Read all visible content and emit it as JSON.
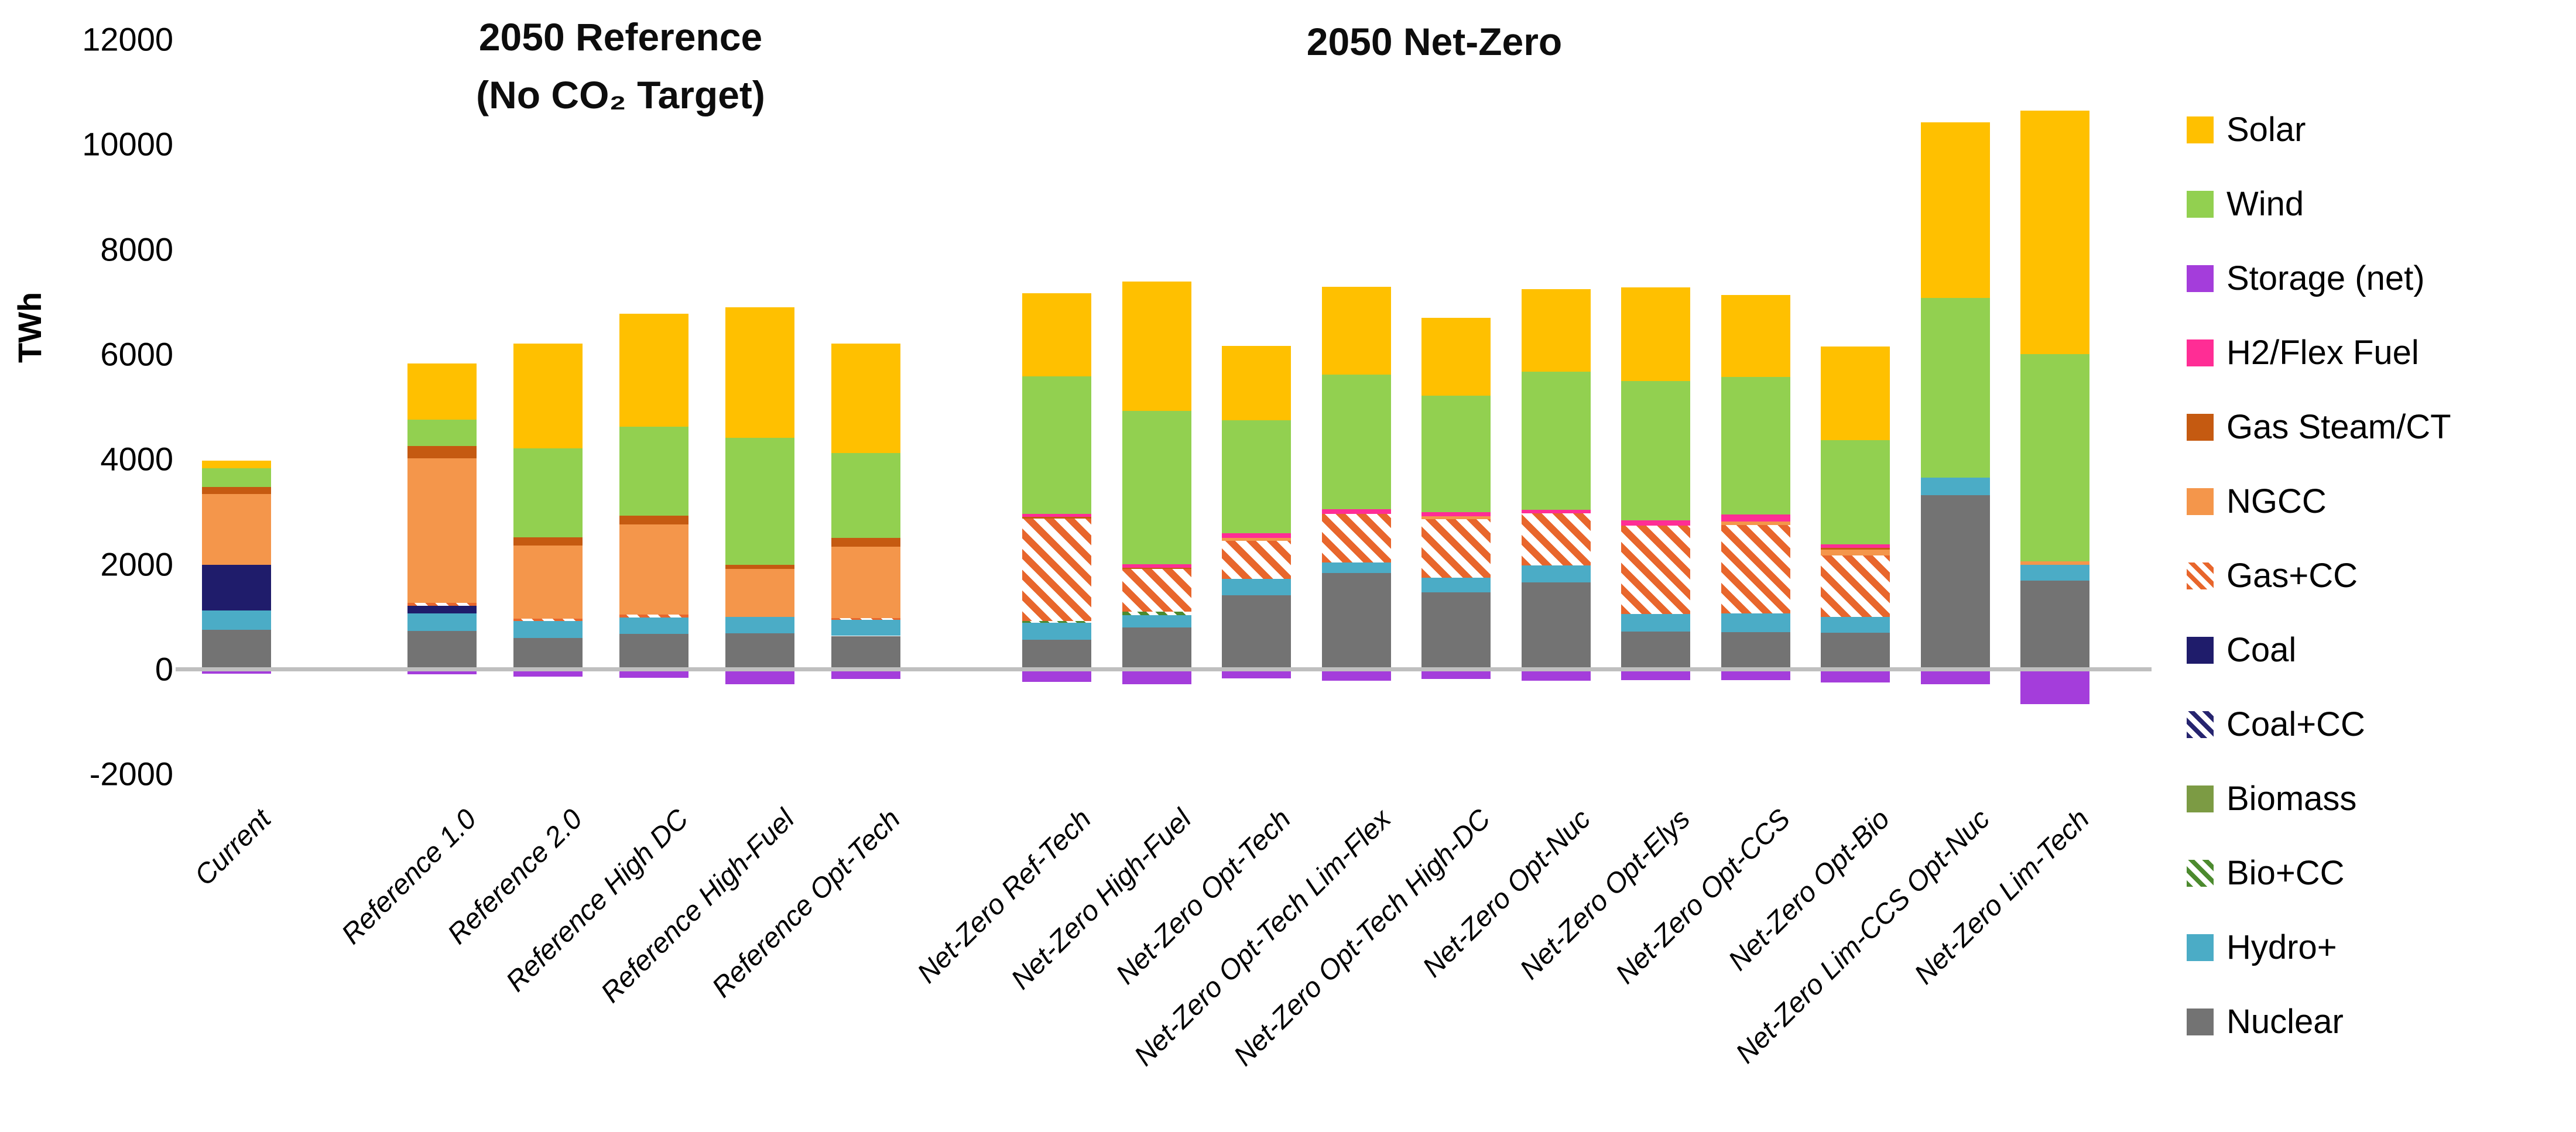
{
  "chart_data": {
    "type": "bar",
    "stacked": true,
    "title_reference": "2050 Reference\n(No CO₂ Target)",
    "title_netzero": "2050 Net-Zero",
    "ylabel": "TWh",
    "yticks": [
      12000,
      10000,
      8000,
      6000,
      4000,
      2000,
      0,
      -2000
    ],
    "ylim": [
      -2000,
      12000
    ],
    "grid": false,
    "legend_position": "right",
    "categories": [
      "Current",
      "Reference 1.0",
      "Reference 2.0",
      "Reference High DC",
      "Reference High-Fuel",
      "Reference Opt-Tech",
      "Net-Zero Ref-Tech",
      "Net-Zero High-Fuel",
      "Net-Zero Opt-Tech",
      "Net-Zero Opt-Tech Lim-Flex",
      "Net-Zero Opt-Tech High-DC",
      "Net-Zero Opt-Nuc",
      "Net-Zero Opt-Elys",
      "Net-Zero Opt-CCS",
      "Net-Zero Opt-Bio",
      "Net-Zero Lim-CCS Opt-Nuc",
      "Net-Zero Lim-Tech"
    ],
    "series": [
      {
        "name": "Nuclear",
        "color": "#737373",
        "pattern": "solid",
        "values": [
          750,
          730,
          590,
          670,
          680,
          630,
          560,
          790,
          1400,
          1830,
          1460,
          1650,
          710,
          700,
          690,
          3310,
          1680
        ]
      },
      {
        "name": "Hydro+",
        "color": "#4bacc6",
        "pattern": "solid",
        "values": [
          360,
          330,
          320,
          310,
          310,
          310,
          320,
          240,
          320,
          200,
          280,
          320,
          340,
          360,
          300,
          340,
          300
        ]
      },
      {
        "name": "Bio+CC",
        "color": "#4c8a2e",
        "pattern": "hatch-biocc",
        "values": [
          0,
          0,
          0,
          0,
          0,
          0,
          40,
          60,
          0,
          0,
          0,
          0,
          0,
          0,
          0,
          0,
          0
        ]
      },
      {
        "name": "Biomass",
        "color": "#7c9b44",
        "pattern": "solid",
        "values": [
          0,
          0,
          0,
          0,
          0,
          0,
          0,
          0,
          0,
          0,
          0,
          0,
          0,
          0,
          0,
          0,
          0
        ]
      },
      {
        "name": "Coal+CC",
        "color": "#26246f",
        "pattern": "hatch-coalcc",
        "values": [
          0,
          0,
          0,
          0,
          0,
          0,
          0,
          0,
          0,
          0,
          0,
          0,
          0,
          0,
          0,
          0,
          0
        ]
      },
      {
        "name": "Coal",
        "color": "#1f1c6b",
        "pattern": "solid",
        "values": [
          870,
          140,
          0,
          0,
          0,
          0,
          0,
          0,
          0,
          0,
          0,
          0,
          0,
          0,
          0,
          0,
          0
        ]
      },
      {
        "name": "Gas+CC",
        "color": "#e8662c",
        "pattern": "hatch-gas",
        "values": [
          0,
          60,
          50,
          60,
          0,
          30,
          1950,
          820,
          720,
          930,
          1120,
          1000,
          1680,
          1680,
          1170,
          0,
          0
        ]
      },
      {
        "name": "NGCC",
        "color": "#f4964b",
        "pattern": "solid",
        "values": [
          1360,
          2760,
          1390,
          1710,
          920,
          1360,
          0,
          0,
          60,
          0,
          50,
          0,
          0,
          70,
          120,
          0,
          70
        ]
      },
      {
        "name": "Gas Steam/CT",
        "color": "#c55a11",
        "pattern": "solid",
        "values": [
          130,
          230,
          160,
          170,
          80,
          170,
          30,
          20,
          0,
          0,
          0,
          0,
          0,
          0,
          30,
          0,
          0
        ]
      },
      {
        "name": "H2/Flex Fuel",
        "color": "#ff2d95",
        "pattern": "solid",
        "values": [
          0,
          0,
          0,
          0,
          0,
          0,
          50,
          70,
          90,
          90,
          80,
          60,
          100,
          130,
          70,
          0,
          0
        ]
      },
      {
        "name": "Wind",
        "color": "#92d050",
        "pattern": "solid",
        "values": [
          350,
          500,
          1690,
          1700,
          2420,
          1620,
          2630,
          2920,
          2150,
          2560,
          2220,
          2640,
          2660,
          2630,
          1980,
          3420,
          3950
        ]
      },
      {
        "name": "Solar",
        "color": "#ffc000",
        "pattern": "solid",
        "values": [
          150,
          1070,
          2000,
          2150,
          2480,
          2080,
          1580,
          2460,
          1420,
          1670,
          1480,
          1570,
          1780,
          1560,
          1790,
          3350,
          4640
        ]
      },
      {
        "name": "Storage (net)",
        "color": "#a43ddb",
        "pattern": "solid",
        "values": [
          -50,
          -60,
          -100,
          -120,
          -250,
          -150,
          -200,
          -250,
          -130,
          -180,
          -140,
          -180,
          -170,
          -170,
          -215,
          -250,
          -620
        ]
      }
    ],
    "legend": [
      {
        "label": "Solar",
        "color": "#ffc000",
        "pattern": "solid"
      },
      {
        "label": "Wind",
        "color": "#92d050",
        "pattern": "solid"
      },
      {
        "label": "Storage (net)",
        "color": "#a43ddb",
        "pattern": "solid"
      },
      {
        "label": "H2/Flex Fuel",
        "color": "#ff2d95",
        "pattern": "solid"
      },
      {
        "label": "Gas Steam/CT",
        "color": "#c55a11",
        "pattern": "solid"
      },
      {
        "label": "NGCC",
        "color": "#f4964b",
        "pattern": "solid"
      },
      {
        "label": "Gas+CC",
        "color": "#e8662c",
        "pattern": "hatch-gas"
      },
      {
        "label": "Coal",
        "color": "#1f1c6b",
        "pattern": "solid"
      },
      {
        "label": "Coal+CC",
        "color": "#26246f",
        "pattern": "hatch-coalcc"
      },
      {
        "label": "Biomass",
        "color": "#7c9b44",
        "pattern": "solid"
      },
      {
        "label": "Bio+CC",
        "color": "#4c8a2e",
        "pattern": "hatch-biocc"
      },
      {
        "label": "Hydro+",
        "color": "#4bacc6",
        "pattern": "solid"
      },
      {
        "label": "Nuclear",
        "color": "#737373",
        "pattern": "solid"
      }
    ],
    "axis_color": "#bfbfbf"
  }
}
